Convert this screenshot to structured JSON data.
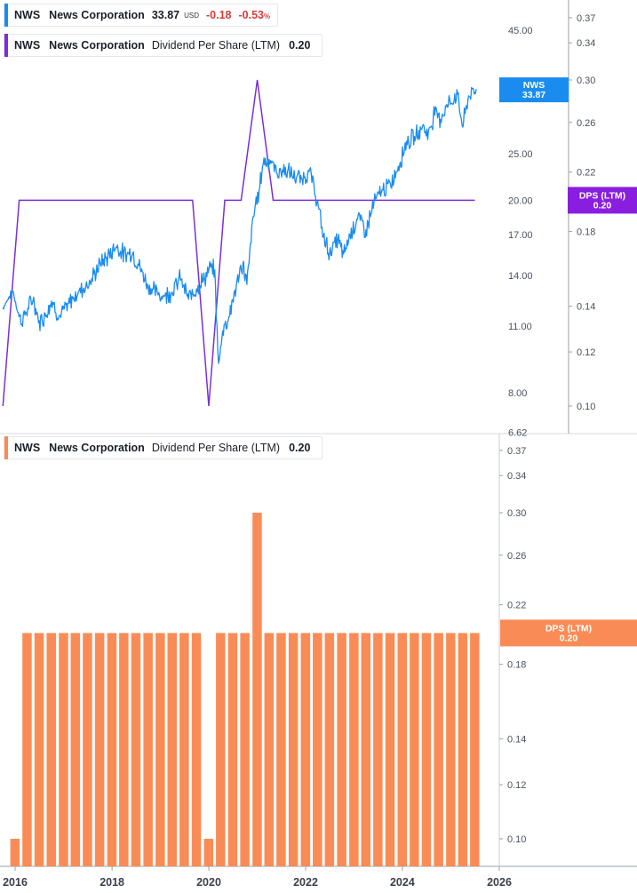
{
  "legend_price": {
    "ticker": "NWS",
    "name": "News Corporation",
    "price": "33.87",
    "currency": "USD",
    "change": "-0.18",
    "change_pct": "-0.53",
    "pct_sign": "%",
    "color": "#1a8cf0",
    "down_color": "#d93a3a"
  },
  "legend_dps_top": {
    "ticker": "NWS",
    "name": "News Corporation",
    "metric": "Dividend Per Share (LTM)",
    "value": "0.20",
    "color": "#7b2fd6"
  },
  "legend_dps_bottom": {
    "ticker": "NWS",
    "name": "News Corporation",
    "metric": "Dividend Per Share (LTM)",
    "value": "0.20",
    "color": "#f98c56"
  },
  "badges": {
    "price": {
      "label": "NWS",
      "value": "33.87",
      "color": "#1a8cf0"
    },
    "dps_top": {
      "label": "DPS (LTM)",
      "value": "0.20",
      "color": "#8a1ee0"
    },
    "dps_bottom": {
      "label": "DPS (LTM)",
      "value": "0.20",
      "color": "#f98c56"
    }
  },
  "chart_data": [
    {
      "type": "line",
      "panel": "top",
      "y_left": {
        "scale": "log",
        "range": [
          6.62,
          56
        ],
        "ticks": [
          "45.00",
          "25.00",
          "20.00",
          "17.00",
          "14.00",
          "11.00",
          "8.00",
          "6.62"
        ]
      },
      "y_right": {
        "scale": "log",
        "range": [
          0.093,
          0.4
        ],
        "ticks": [
          "0.37",
          "0.34",
          "0.30",
          "0.26",
          "0.22",
          "0.18",
          "0.14",
          "0.12",
          "0.10"
        ]
      },
      "series": [
        {
          "name": "NWS",
          "axis": "left",
          "color": "#1a8cf0",
          "x": [
            "2015-10-01",
            "2015-12-15",
            "2016-02-15",
            "2016-03-15",
            "2016-05-15",
            "2016-07-01",
            "2016-08-15",
            "2016-10-01",
            "2016-12-01",
            "2017-02-01",
            "2017-04-01",
            "2017-06-01",
            "2017-08-01",
            "2017-10-01",
            "2017-12-01",
            "2018-02-01",
            "2018-04-01",
            "2018-06-01",
            "2018-08-01",
            "2018-10-01",
            "2018-12-15",
            "2019-02-01",
            "2019-04-01",
            "2019-06-01",
            "2019-08-01",
            "2019-10-01",
            "2019-12-01",
            "2020-01-15",
            "2020-02-15",
            "2020-03-15",
            "2020-04-15",
            "2020-06-01",
            "2020-08-01",
            "2020-09-15",
            "2020-10-15",
            "2020-12-01",
            "2021-01-15",
            "2021-02-15",
            "2021-04-01",
            "2021-06-01",
            "2021-08-01",
            "2021-10-01",
            "2021-12-01",
            "2022-02-01",
            "2022-04-01",
            "2022-05-15",
            "2022-07-01",
            "2022-09-01",
            "2022-10-15",
            "2022-12-01",
            "2023-02-01",
            "2023-04-01",
            "2023-06-01",
            "2023-08-01",
            "2023-10-01",
            "2023-12-01",
            "2024-02-01",
            "2024-04-01",
            "2024-06-01",
            "2024-07-15",
            "2024-09-01",
            "2024-10-15",
            "2024-12-01",
            "2025-01-15",
            "2025-02-15",
            "2025-04-01",
            "2025-05-15",
            "2025-07-01",
            "2025-07-15"
          ],
          "values": [
            12.0,
            13.0,
            11.2,
            11.6,
            12.5,
            11.2,
            11.6,
            12.4,
            11.5,
            12.1,
            12.8,
            13.2,
            13.7,
            14.8,
            15.3,
            16.1,
            15.5,
            15.6,
            14.5,
            13.3,
            12.8,
            12.7,
            13.0,
            13.8,
            12.5,
            13.2,
            13.8,
            14.5,
            14.3,
            9.1,
            10.8,
            11.5,
            13.5,
            14.8,
            13.4,
            18.5,
            21.0,
            24.0,
            24.3,
            22.8,
            23.2,
            22.4,
            22.1,
            23.0,
            19.8,
            16.8,
            15.6,
            16.6,
            15.4,
            17.0,
            18.5,
            17.3,
            19.8,
            21.0,
            21.5,
            23.5,
            26.5,
            27.0,
            28.5,
            27.5,
            30.5,
            29.5,
            31.5,
            32.0,
            33.5,
            28.5,
            33.0,
            33.5,
            33.87
          ]
        },
        {
          "name": "DPS (LTM)",
          "axis": "right",
          "color": "#7b2fd6",
          "x": [
            "2015-10-01",
            "2016-02-01",
            "2016-02-15",
            "2019-09-01",
            "2020-01-01",
            "2020-05-01",
            "2020-05-15",
            "2020-09-01",
            "2021-01-01",
            "2021-05-01",
            "2021-05-15",
            "2025-07-01"
          ],
          "values": [
            0.1,
            0.2,
            0.2,
            0.2,
            0.1,
            0.2,
            0.2,
            0.2,
            0.3,
            0.2,
            0.2,
            0.2
          ]
        }
      ]
    },
    {
      "type": "bar",
      "panel": "bottom",
      "x_ticks": [
        "2016",
        "2018",
        "2020",
        "2022",
        "2024",
        "2026"
      ],
      "y_right": {
        "scale": "log",
        "range": [
          0.093,
          0.4
        ],
        "ticks": [
          "0.37",
          "0.34",
          "0.30",
          "0.26",
          "0.22",
          "0.18",
          "0.14",
          "0.12",
          "0.10"
        ]
      },
      "series": [
        {
          "name": "Dividend Per Share (LTM)",
          "color": "#f98c56",
          "x": [
            "2015-12-31",
            "2016-03-31",
            "2016-06-30",
            "2016-09-30",
            "2016-12-31",
            "2017-03-31",
            "2017-06-30",
            "2017-09-30",
            "2017-12-31",
            "2018-03-31",
            "2018-06-30",
            "2018-09-30",
            "2018-12-31",
            "2019-03-31",
            "2019-06-30",
            "2019-09-30",
            "2019-12-31",
            "2020-03-31",
            "2020-06-30",
            "2020-09-30",
            "2020-12-31",
            "2021-03-31",
            "2021-06-30",
            "2021-09-30",
            "2021-12-31",
            "2022-03-31",
            "2022-06-30",
            "2022-09-30",
            "2022-12-31",
            "2023-03-31",
            "2023-06-30",
            "2023-09-30",
            "2023-12-31",
            "2024-03-31",
            "2024-06-30",
            "2024-09-30",
            "2024-12-31",
            "2025-03-31",
            "2025-06-30"
          ],
          "values": [
            0.1,
            0.2,
            0.2,
            0.2,
            0.2,
            0.2,
            0.2,
            0.2,
            0.2,
            0.2,
            0.2,
            0.2,
            0.2,
            0.2,
            0.2,
            0.2,
            0.1,
            0.2,
            0.2,
            0.2,
            0.3,
            0.2,
            0.2,
            0.2,
            0.2,
            0.2,
            0.2,
            0.2,
            0.2,
            0.2,
            0.2,
            0.2,
            0.2,
            0.2,
            0.2,
            0.2,
            0.2,
            0.2,
            0.2
          ]
        }
      ]
    }
  ]
}
